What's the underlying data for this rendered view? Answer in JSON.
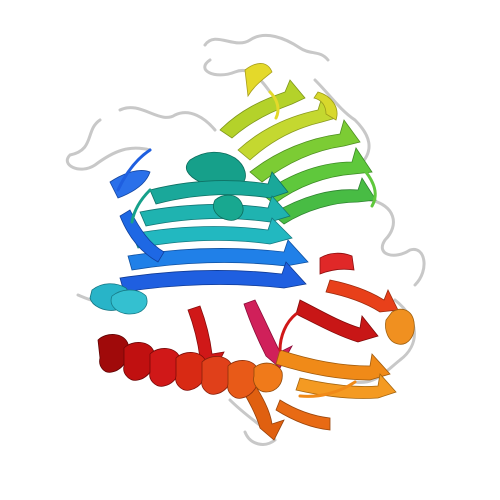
{
  "scene": {
    "background": "#ffffff",
    "subject": "protein-ribbon-structure",
    "coloring": "rainbow-n-to-c-terminus",
    "palette": {
      "coil": "#c8c8c8",
      "blue": "#1f5fe0",
      "cyan": "#1fb3b0",
      "teal": "#16a08a",
      "green": "#5fc83c",
      "yellow_green": "#b4d22a",
      "yellow": "#e4d92a",
      "orange": "#f08a18",
      "dark_orange": "#e06010",
      "red": "#d01818",
      "dark_red": "#a00a0a",
      "magenta": "#d0205a"
    }
  }
}
